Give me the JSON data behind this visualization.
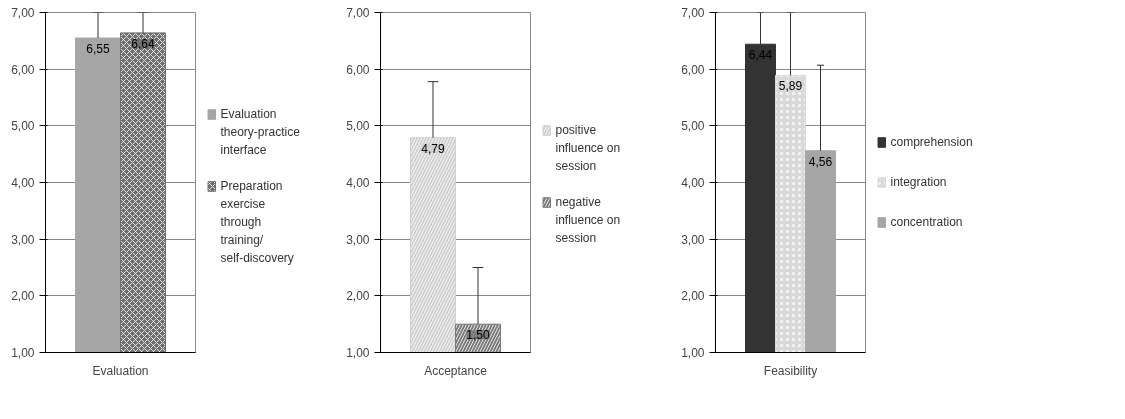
{
  "chart_data": [
    {
      "type": "bar",
      "categories": [
        "Evaluation"
      ],
      "ylim": [
        1,
        7
      ],
      "yticks": [
        {
          "value": 1,
          "label": "1,00"
        },
        {
          "value": 2,
          "label": "2,00"
        },
        {
          "value": 3,
          "label": "3,00"
        },
        {
          "value": 4,
          "label": "4,00"
        },
        {
          "value": 5,
          "label": "5,00"
        },
        {
          "value": 6,
          "label": "6,00"
        },
        {
          "value": 7,
          "label": "7,00"
        }
      ],
      "grid": "y",
      "legend": "right",
      "series": [
        {
          "name": "Evaluation theory-practice interface",
          "color": "#a6a6a6",
          "values": [
            6.55
          ],
          "value_labels": [
            "6,55"
          ],
          "errors": [
            [
              6.55,
              7.0
            ]
          ]
        },
        {
          "name": "Preparation exercise through training/ self-discovery",
          "color": "#6e6e6e",
          "values": [
            6.64
          ],
          "value_labels": [
            "6,64"
          ],
          "errors": [
            [
              6.64,
              7.0
            ]
          ]
        }
      ]
    },
    {
      "type": "bar",
      "categories": [
        "Acceptance"
      ],
      "ylim": [
        1,
        7
      ],
      "yticks": [
        {
          "value": 1,
          "label": "1,00"
        },
        {
          "value": 2,
          "label": "2,00"
        },
        {
          "value": 3,
          "label": "3,00"
        },
        {
          "value": 4,
          "label": "4,00"
        },
        {
          "value": 5,
          "label": "5,00"
        },
        {
          "value": 6,
          "label": "6,00"
        },
        {
          "value": 7,
          "label": "7,00"
        }
      ],
      "grid": "y",
      "legend": "right",
      "series": [
        {
          "name": "positive influence on session",
          "color": "#d0d0d0",
          "values": [
            4.79
          ],
          "value_labels": [
            "4,79"
          ],
          "errors": [
            [
              4.79,
              5.78
            ]
          ]
        },
        {
          "name": "negative influence on session",
          "color": "#7a7a7a",
          "values": [
            1.5
          ],
          "value_labels": [
            "1,50"
          ],
          "errors": [
            [
              1.5,
              2.5
            ]
          ]
        }
      ]
    },
    {
      "type": "bar",
      "categories": [
        "Feasibility"
      ],
      "ylim": [
        1,
        7
      ],
      "yticks": [
        {
          "value": 1,
          "label": "1,00"
        },
        {
          "value": 2,
          "label": "2,00"
        },
        {
          "value": 3,
          "label": "3,00"
        },
        {
          "value": 4,
          "label": "4,00"
        },
        {
          "value": 5,
          "label": "5,00"
        },
        {
          "value": 6,
          "label": "6,00"
        },
        {
          "value": 7,
          "label": "7,00"
        }
      ],
      "grid": "y",
      "legend": "right",
      "series": [
        {
          "name": "comprehension",
          "color": "#333333",
          "values": [
            6.44
          ],
          "value_labels": [
            "6,44"
          ],
          "errors": [
            [
              6.44,
              7.0
            ]
          ]
        },
        {
          "name": "integration",
          "color": "#d9d9d9",
          "values": [
            5.89
          ],
          "value_labels": [
            "5,89"
          ],
          "errors": [
            [
              5.89,
              7.0
            ]
          ]
        },
        {
          "name": "concentration",
          "color": "#a6a6a6",
          "values": [
            4.56
          ],
          "value_labels": [
            "4,56"
          ],
          "errors": [
            [
              4.56,
              6.07
            ]
          ]
        }
      ]
    }
  ]
}
